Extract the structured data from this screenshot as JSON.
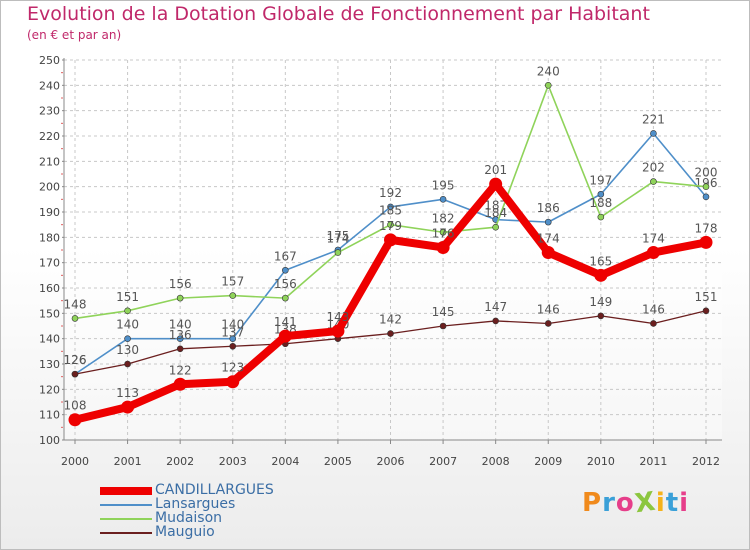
{
  "title": "Evolution de la Dotation Globale de Fonctionnement par Habitant",
  "subtitle": "(en € et par an)",
  "logo": {
    "text": "ProXiti",
    "colors": [
      "#f08a1c",
      "#3aa0d8",
      "#e63e8a",
      "#8cc63f",
      "#f5b21b",
      "#3aa0d8",
      "#e63e8a"
    ]
  },
  "chart_data": {
    "type": "line",
    "title": "Evolution de la Dotation Globale de Fonctionnement par Habitant",
    "subtitle": "(en € et par an)",
    "xlabel": "",
    "ylabel": "",
    "x": [
      "2000",
      "2001",
      "2002",
      "2003",
      "2004",
      "2005",
      "2006",
      "2007",
      "2008",
      "2009",
      "2010",
      "2011",
      "2012"
    ],
    "ylim": [
      100,
      250
    ],
    "yticks": [
      "100",
      "110",
      "120",
      "130",
      "140",
      "150",
      "160",
      "170",
      "180",
      "190",
      "200",
      "210",
      "220",
      "230",
      "240",
      "250"
    ],
    "grid": true,
    "legend_position": "bottom-left",
    "series": [
      {
        "name": "Lansargues",
        "color": "#4f8fc9",
        "emphasis": false,
        "values": [
          126,
          140,
          140,
          140,
          167,
          175,
          192,
          195,
          187,
          186,
          197,
          221,
          196
        ],
        "labels": [
          "126",
          "140",
          "140",
          "140",
          "167",
          "175",
          "192",
          "195",
          "187",
          "186",
          "197",
          "221",
          "196"
        ]
      },
      {
        "name": "Mudaison",
        "color": "#8fd35a",
        "emphasis": false,
        "values": [
          148,
          151,
          156,
          157,
          156,
          174,
          185,
          182,
          184,
          240,
          188,
          202,
          200
        ],
        "labels": [
          "148",
          "151",
          "156",
          "157",
          "156",
          "174",
          "185",
          "182",
          "184",
          "240",
          "188",
          "202",
          "200"
        ]
      },
      {
        "name": "Mauguio",
        "color": "#6b1f1f",
        "emphasis": false,
        "values": [
          126,
          130,
          136,
          137,
          138,
          140,
          142,
          145,
          147,
          146,
          149,
          146,
          151
        ],
        "labels": [
          "126",
          "130",
          "136",
          "137",
          "138",
          "140",
          "142",
          "145",
          "147",
          "146",
          "149",
          "146",
          "151"
        ]
      },
      {
        "name": "CANDILLARGUES",
        "color": "#ee0000",
        "emphasis": true,
        "values": [
          108,
          113,
          122,
          123,
          141,
          143,
          179,
          176,
          201,
          174,
          165,
          174,
          178
        ],
        "labels": [
          "108",
          "113",
          "122",
          "123",
          "141",
          "143",
          "179",
          "176",
          "201",
          "174",
          "165",
          "174",
          "178"
        ]
      }
    ],
    "legend": [
      "CANDILLARGUES",
      "Lansargues",
      "Mudaison",
      "Mauguio"
    ]
  }
}
